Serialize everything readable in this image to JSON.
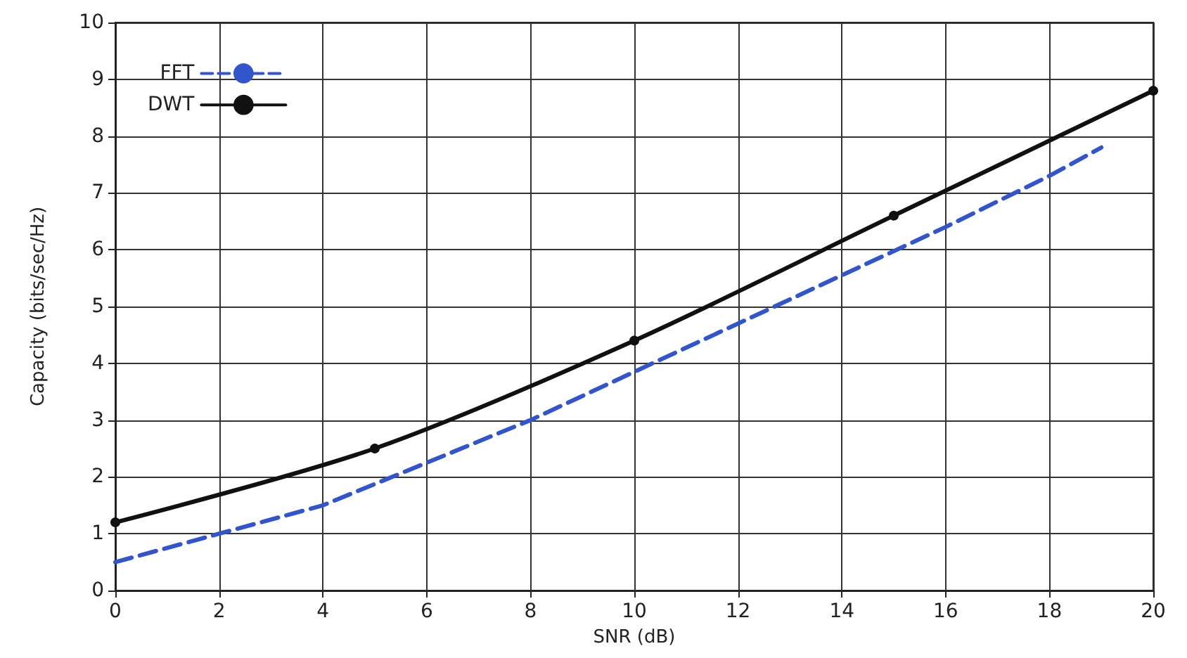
{
  "chart_data": {
    "type": "line",
    "xlabel": "SNR (dB)",
    "ylabel": "Capacity (bits/sec/Hz)",
    "xlim": [
      0,
      20
    ],
    "xticks": [
      0,
      2,
      4,
      6,
      8,
      10,
      12,
      14,
      16,
      18,
      20
    ],
    "ylim": [
      0,
      10
    ],
    "yticks": [
      0,
      1,
      2,
      3,
      4,
      5,
      6,
      7,
      8,
      9,
      10
    ],
    "grid": true,
    "legend": "top left",
    "series": [
      {
        "name": "FFT",
        "color": "#3355cc",
        "line_style": "dashed",
        "marker": "none",
        "x": [
          0,
          2,
          4,
          6,
          8,
          10,
          12,
          14,
          16,
          18,
          19
        ],
        "values": [
          0.5,
          1.0,
          1.5,
          2.25,
          3.0,
          3.85,
          4.7,
          5.55,
          6.4,
          7.3,
          7.8
        ]
      },
      {
        "name": "DWT",
        "color": "#111111",
        "line_style": "solid",
        "marker": "circle",
        "x": [
          0,
          5,
          10,
          15,
          20
        ],
        "values": [
          1.2,
          2.5,
          4.4,
          6.6,
          8.8
        ]
      }
    ]
  }
}
